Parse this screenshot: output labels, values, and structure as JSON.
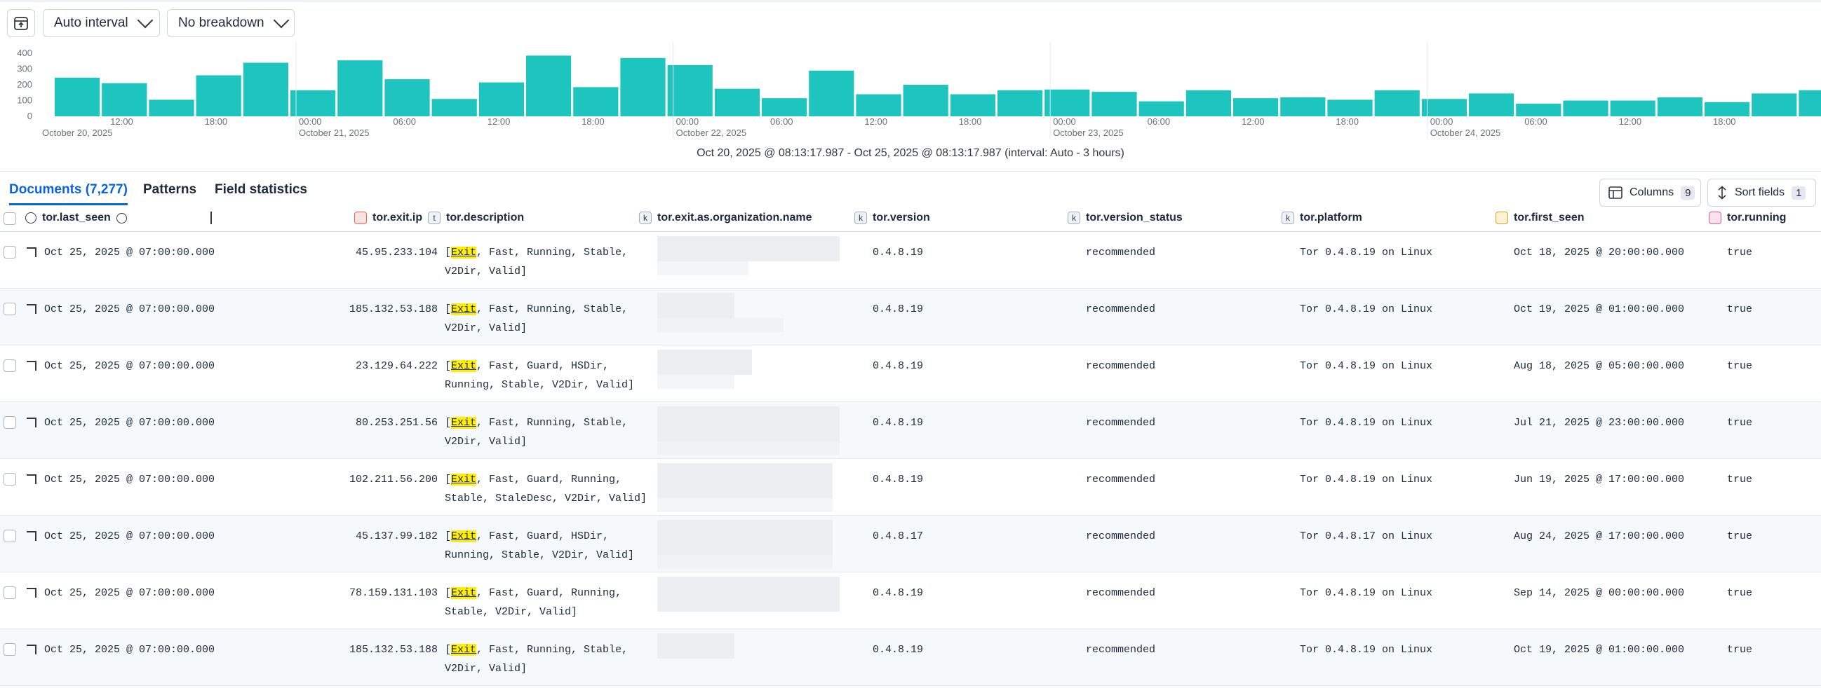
{
  "toolbar": {
    "interval": "Auto interval",
    "breakdown": "No breakdown"
  },
  "chart_data": {
    "type": "bar",
    "color": "#1dc5be",
    "ylim": [
      0,
      400
    ],
    "yticks": [
      0,
      100,
      200,
      300,
      400
    ],
    "categories": [
      null,
      "12:00",
      null,
      "18:00",
      null,
      "00:00",
      null,
      "06:00",
      null,
      "12:00",
      null,
      "18:00",
      null,
      "00:00",
      null,
      "06:00",
      null,
      "12:00",
      null,
      "18:00",
      null,
      "00:00",
      null,
      "06:00",
      null,
      "12:00",
      null,
      "18:00",
      null,
      "00:00",
      null,
      "06:00",
      null,
      "12:00",
      null,
      "18:00",
      null,
      null
    ],
    "date_labels": [
      "October 20, 2025",
      "October 21, 2025",
      "October 22, 2025",
      "October 23, 2025",
      "October 24, 2025"
    ],
    "values": [
      245,
      210,
      105,
      260,
      340,
      165,
      355,
      235,
      110,
      215,
      385,
      185,
      370,
      325,
      175,
      115,
      290,
      140,
      200,
      140,
      165,
      170,
      155,
      95,
      165,
      115,
      120,
      105,
      165,
      110,
      145,
      80,
      100,
      100,
      120,
      90,
      145,
      165
    ],
    "range_text": "Oct 20, 2025 @ 08:13:17.987 - Oct 25, 2025 @ 08:13:17.987 (interval: Auto - 3 hours)"
  },
  "tabs": [
    "Documents (7,277)",
    "Patterns",
    "Field statistics"
  ],
  "buttons": {
    "columns": "Columns",
    "columns_count": "9",
    "sort": "Sort fields",
    "sort_count": "1"
  },
  "columns": [
    {
      "name": "tor.last_seen"
    },
    {
      "name": "tor.exit.ip"
    },
    {
      "name": "tor.description",
      "type": "t"
    },
    {
      "name": "tor.exit.as.organization.name",
      "type": "k"
    },
    {
      "name": "tor.version",
      "type": "k"
    },
    {
      "name": "tor.version_status",
      "type": "k"
    },
    {
      "name": "tor.platform",
      "type": "k"
    },
    {
      "name": "tor.first_seen"
    },
    {
      "name": "tor.running"
    }
  ],
  "highlight": "Exit",
  "rows": [
    {
      "last_seen": "Oct 25, 2025 @ 07:00:00.000",
      "exit_ip": "45.95.233.104",
      "description": "[Exit, Fast, Running, Stable, V2Dir, Valid]",
      "version": "0.4.8.19",
      "version_status": "recommended",
      "platform": "Tor 0.4.8.19 on Linux",
      "first_seen": "Oct 18, 2025 @ 20:00:00.000",
      "running": "true"
    },
    {
      "last_seen": "Oct 25, 2025 @ 07:00:00.000",
      "exit_ip": "185.132.53.188",
      "description": "[Exit, Fast, Running, Stable, V2Dir, Valid]",
      "version": "0.4.8.19",
      "version_status": "recommended",
      "platform": "Tor 0.4.8.19 on Linux",
      "first_seen": "Oct 19, 2025 @ 01:00:00.000",
      "running": "true"
    },
    {
      "last_seen": "Oct 25, 2025 @ 07:00:00.000",
      "exit_ip": "23.129.64.222",
      "description": "[Exit, Fast, Guard, HSDir, Running, Stable, V2Dir, Valid]",
      "version": "0.4.8.19",
      "version_status": "recommended",
      "platform": "Tor 0.4.8.19 on Linux",
      "first_seen": "Aug 18, 2025 @ 05:00:00.000",
      "running": "true"
    },
    {
      "last_seen": "Oct 25, 2025 @ 07:00:00.000",
      "exit_ip": "80.253.251.56",
      "description": "[Exit, Fast, Running, Stable, V2Dir, Valid]",
      "version": "0.4.8.19",
      "version_status": "recommended",
      "platform": "Tor 0.4.8.19 on Linux",
      "first_seen": "Jul 21, 2025 @ 23:00:00.000",
      "running": "true"
    },
    {
      "last_seen": "Oct 25, 2025 @ 07:00:00.000",
      "exit_ip": "102.211.56.200",
      "description": "[Exit, Fast, Guard, Running, Stable, StaleDesc, V2Dir, Valid]",
      "version": "0.4.8.19",
      "version_status": "recommended",
      "platform": "Tor 0.4.8.19 on Linux",
      "first_seen": "Jun 19, 2025 @ 17:00:00.000",
      "running": "true"
    },
    {
      "last_seen": "Oct 25, 2025 @ 07:00:00.000",
      "exit_ip": "45.137.99.182",
      "description": "[Exit, Fast, Guard, HSDir, Running, Stable, V2Dir, Valid]",
      "version": "0.4.8.17",
      "version_status": "recommended",
      "platform": "Tor 0.4.8.17 on Linux",
      "first_seen": "Aug 24, 2025 @ 17:00:00.000",
      "running": "true"
    },
    {
      "last_seen": "Oct 25, 2025 @ 07:00:00.000",
      "exit_ip": "78.159.131.103",
      "description": "[Exit, Fast, Guard, Running, Stable, V2Dir, Valid]",
      "version": "0.4.8.19",
      "version_status": "recommended",
      "platform": "Tor 0.4.8.19 on Linux",
      "first_seen": "Sep 14, 2025 @ 00:00:00.000",
      "running": "true"
    },
    {
      "last_seen": "Oct 25, 2025 @ 07:00:00.000",
      "exit_ip": "185.132.53.188",
      "description": "[Exit, Fast, Running, Stable, V2Dir, Valid]",
      "version": "0.4.8.19",
      "version_status": "recommended",
      "platform": "Tor 0.4.8.19 on Linux",
      "first_seen": "Oct 19, 2025 @ 01:00:00.000",
      "running": "true"
    }
  ]
}
